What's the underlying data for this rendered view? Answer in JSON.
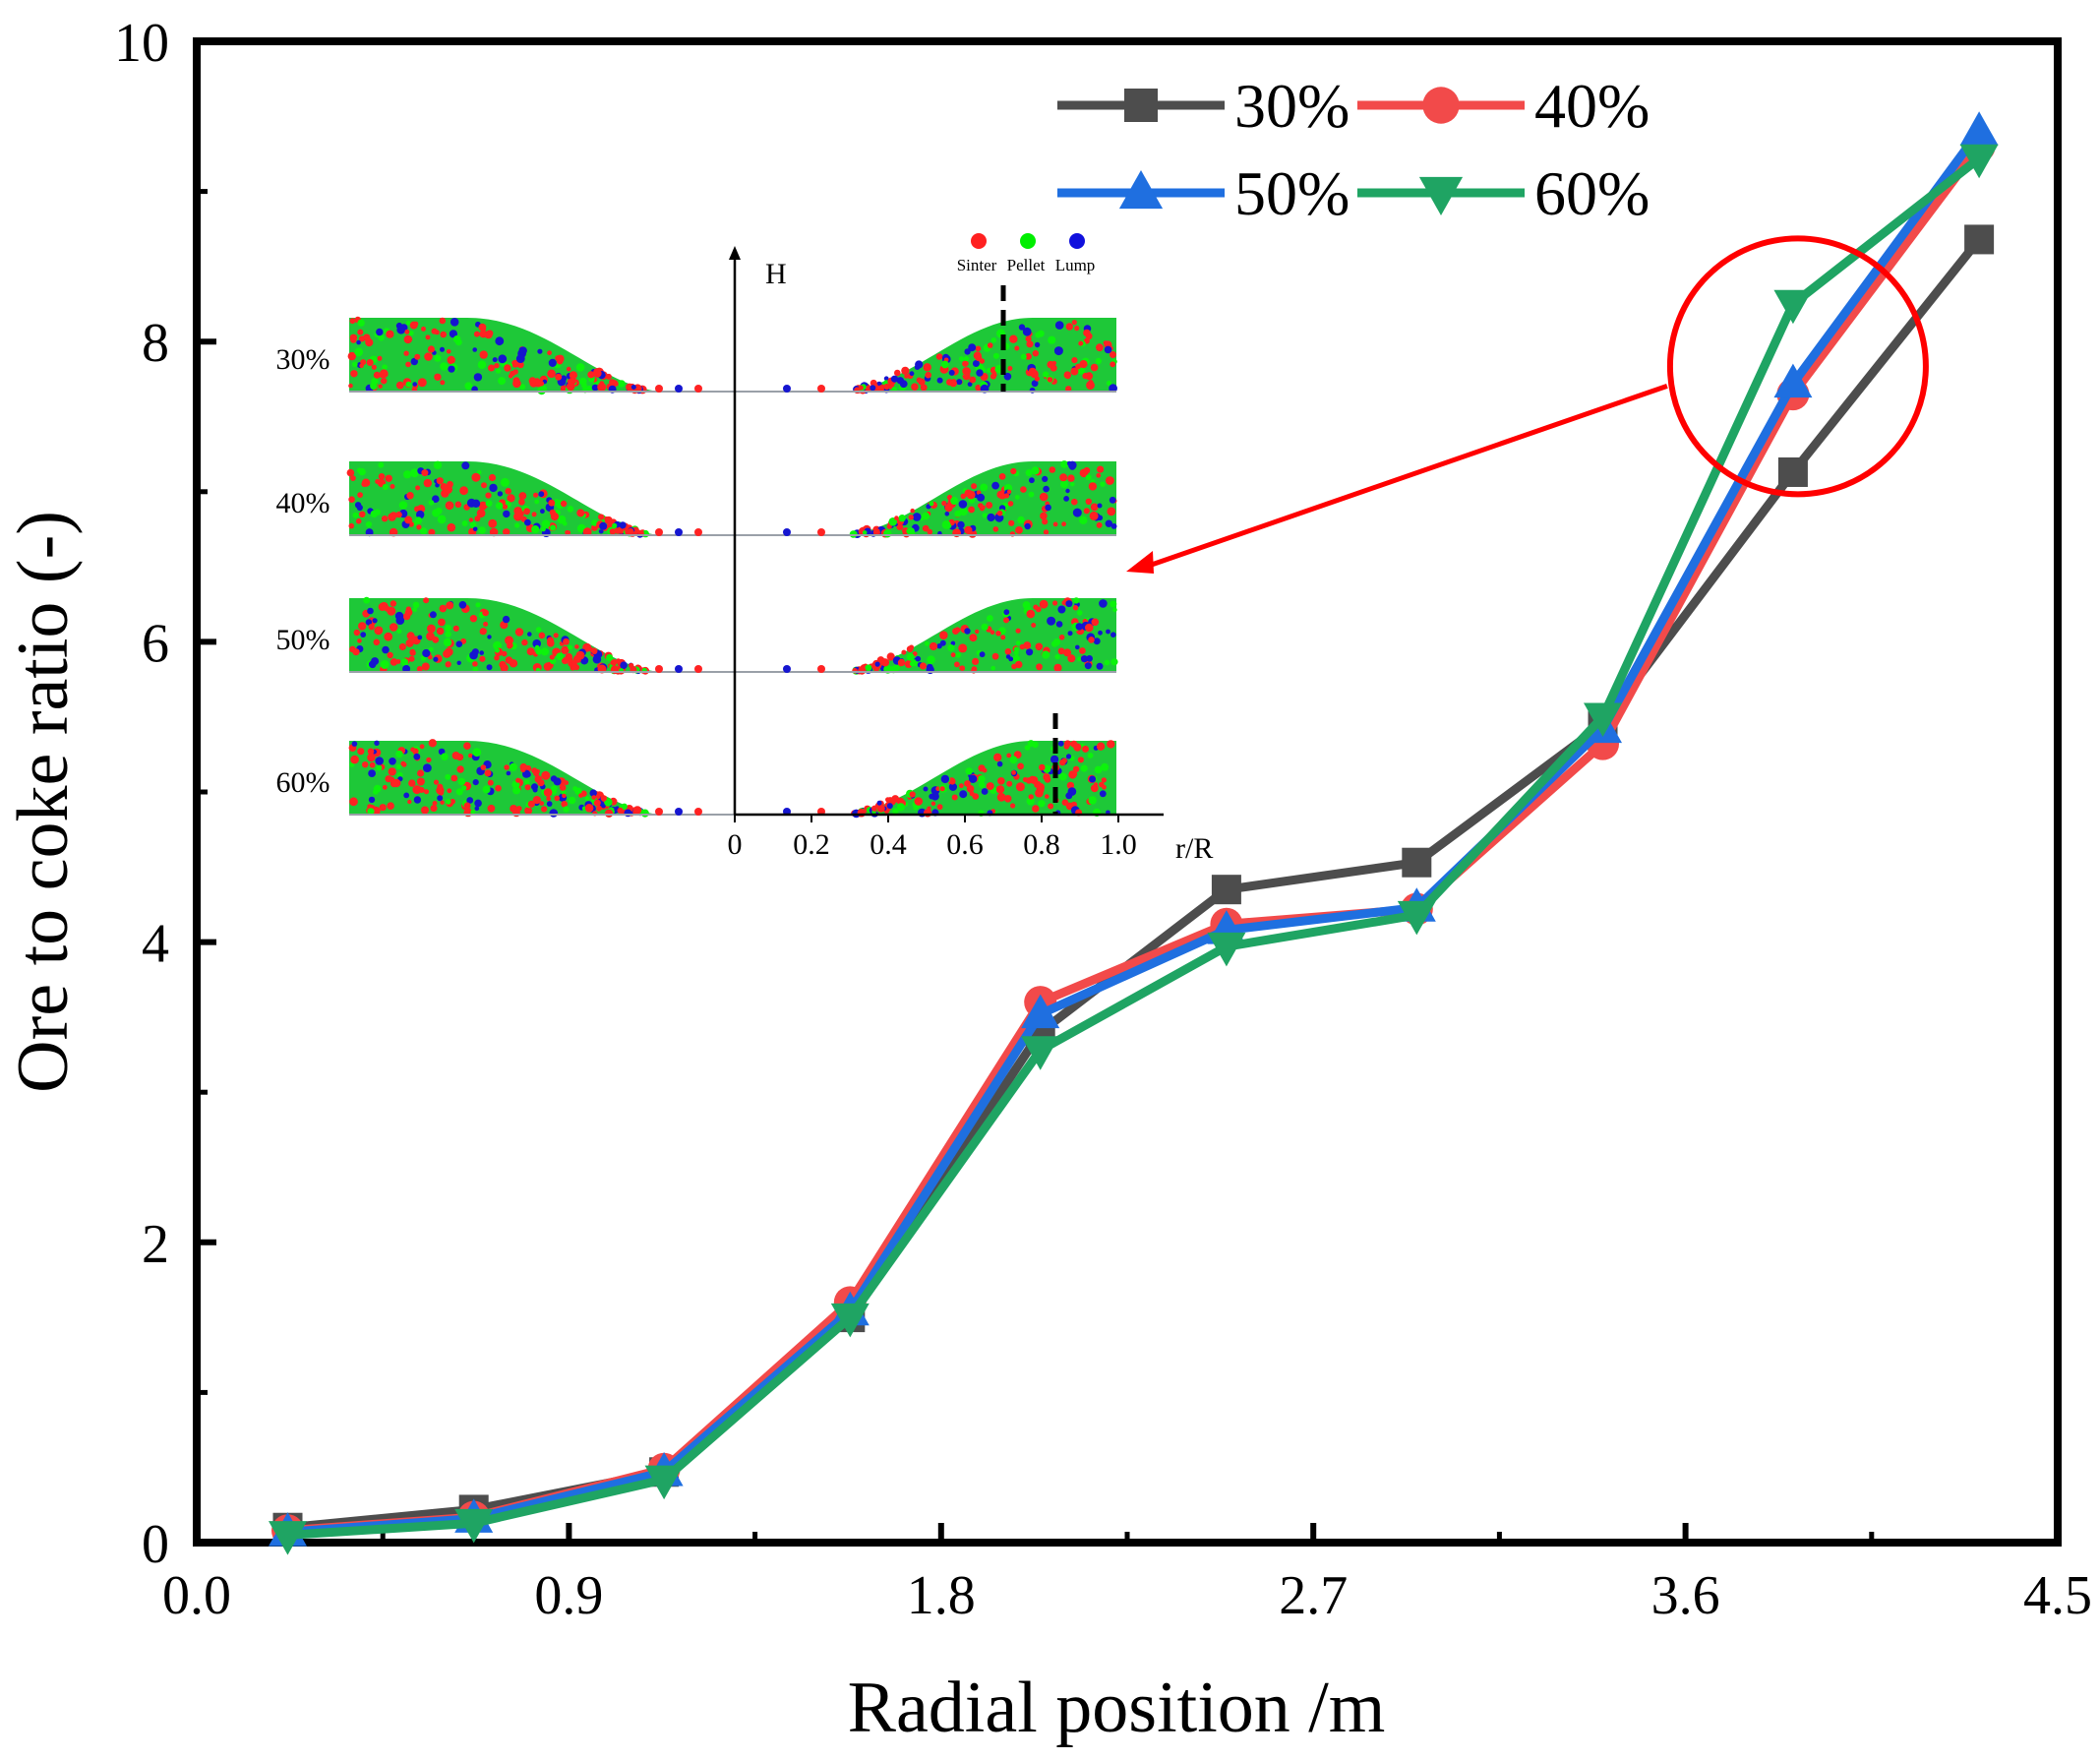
{
  "chart_data": {
    "type": "line",
    "title": "",
    "xlabel": "Radial position /m",
    "ylabel": "Ore to coke ratio (-)",
    "xlim": [
      0.0,
      4.5
    ],
    "ylim": [
      0,
      10
    ],
    "x_ticks": [
      "0.0",
      "0.9",
      "1.8",
      "2.7",
      "3.6",
      "4.5"
    ],
    "y_ticks": [
      "0",
      "2",
      "4",
      "6",
      "8",
      "10"
    ],
    "x": [
      0.22,
      0.67,
      1.13,
      1.58,
      2.04,
      2.49,
      2.95,
      3.4,
      3.86,
      4.31
    ],
    "series": [
      {
        "name": "30%",
        "color": "#4d4d4d",
        "marker": "square",
        "values": [
          0.1,
          0.22,
          0.47,
          1.5,
          3.4,
          4.35,
          4.53,
          5.45,
          7.13,
          8.68
        ]
      },
      {
        "name": "40%",
        "color": "#f24a4a",
        "marker": "circle",
        "values": [
          0.08,
          0.17,
          0.49,
          1.6,
          3.6,
          4.12,
          4.22,
          5.32,
          7.65,
          9.3
        ]
      },
      {
        "name": "50%",
        "color": "#1f6fe0",
        "marker": "triangle-up",
        "values": [
          0.07,
          0.16,
          0.47,
          1.54,
          3.52,
          4.08,
          4.23,
          5.42,
          7.72,
          9.4
        ]
      },
      {
        "name": "60%",
        "color": "#1fa463",
        "marker": "triangle-down",
        "values": [
          0.05,
          0.13,
          0.42,
          1.5,
          3.28,
          3.97,
          4.18,
          5.5,
          8.25,
          9.22
        ]
      }
    ],
    "legend": {
      "position": "top-right",
      "columns": 2
    },
    "annotation": {
      "type": "circle",
      "color": "#ff0000",
      "target_x": 3.86,
      "target_y": 7.75,
      "arrow_to": "inset"
    },
    "inset": {
      "y_axis_label": "H",
      "x_axis_label": "r/R",
      "x_ticks": [
        "0",
        "0.2",
        "0.4",
        "0.6",
        "0.8",
        "1.0"
      ],
      "rows": [
        "30%",
        "40%",
        "50%",
        "60%"
      ],
      "legend": [
        {
          "label": "Sinter",
          "color": "#ff2020"
        },
        {
          "label": "Pellet",
          "color": "#00ee00"
        },
        {
          "label": "Lump",
          "color": "#1010dd"
        }
      ]
    }
  }
}
